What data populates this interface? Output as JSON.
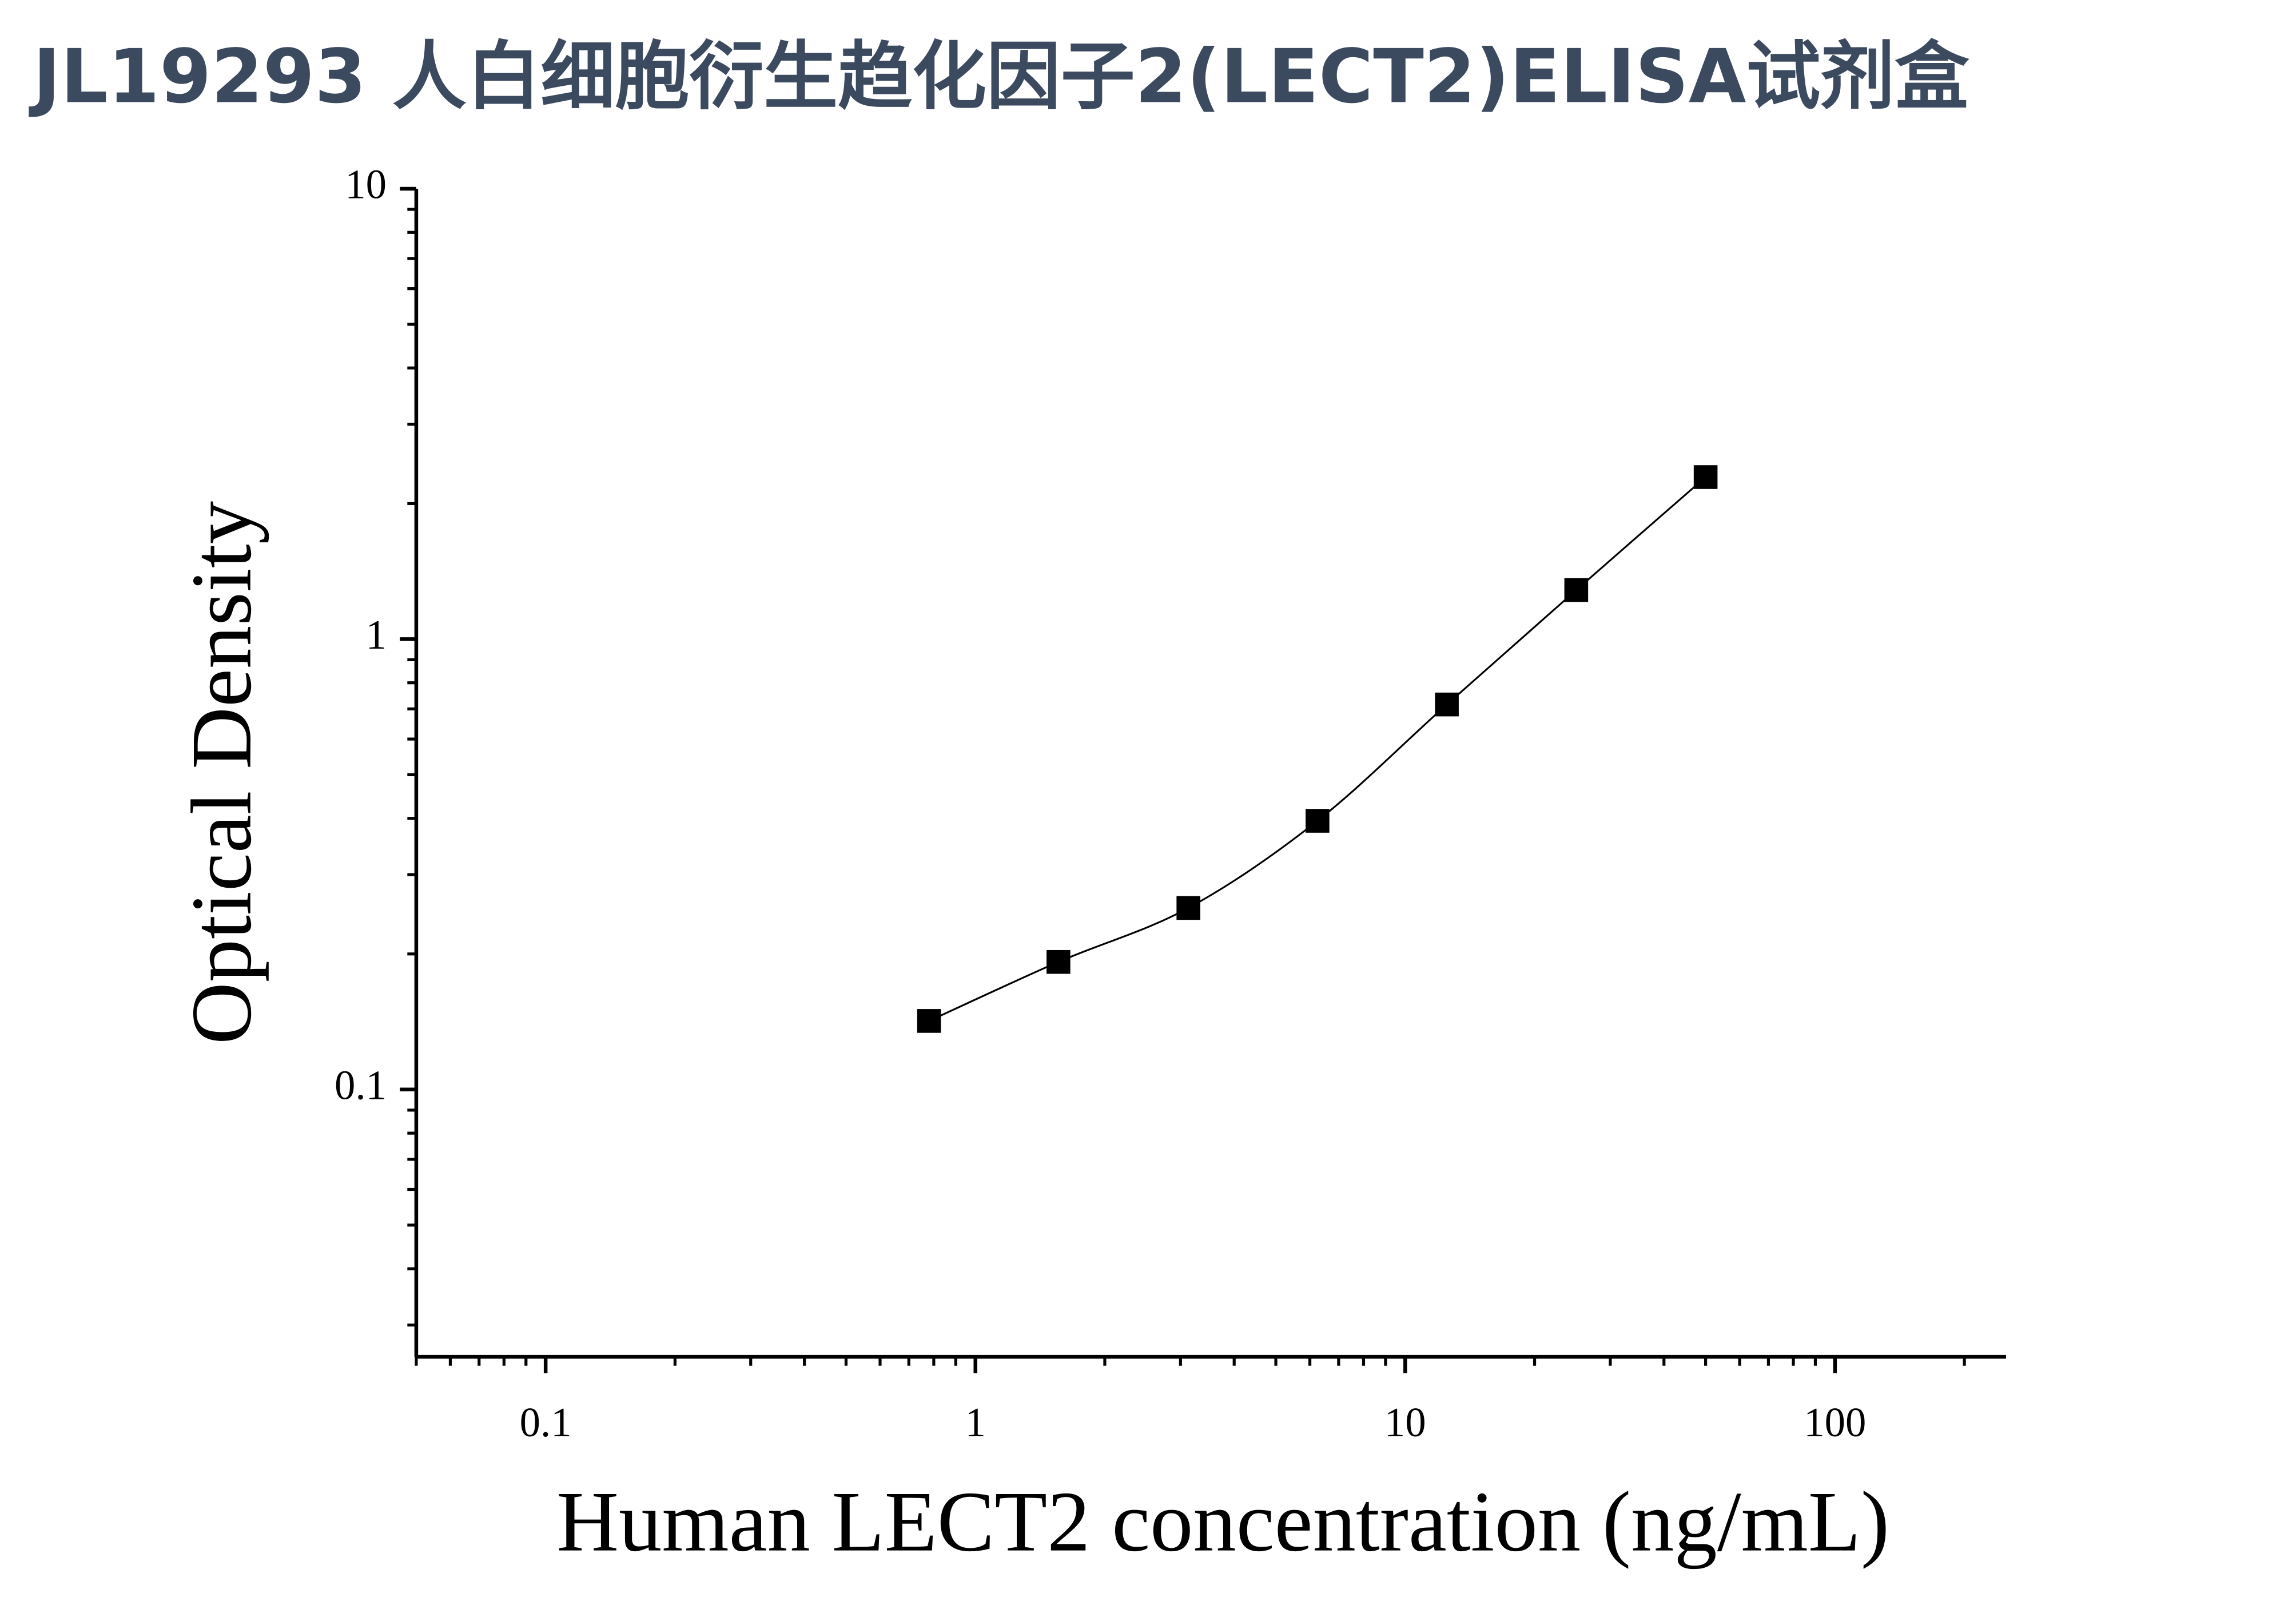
{
  "chart_data": {
    "type": "scatter",
    "title": "JL19293 人白细胞衍生趋化因子2(LECT2)ELISA试剂盒",
    "x_label": "Human LECT2 concentration (ng/mL)",
    "y_label": "Optical Density",
    "x": [
      0.78,
      1.56,
      3.13,
      6.25,
      12.5,
      25,
      50
    ],
    "series": [
      {
        "color": "#000000",
        "values": [
          0.142,
          0.192,
          0.253,
          0.395,
          0.716,
          1.285,
          2.29
        ]
      }
    ],
    "xlim": [
      0.05,
      250
    ],
    "ylim": [
      0.0255,
      10
    ],
    "xticks": [
      0.1,
      1,
      10,
      100
    ],
    "yticks": [
      0.1,
      1,
      10
    ],
    "xscale": "log",
    "yscale": "log",
    "minor_ticks": true,
    "fit_line": true,
    "grid": false
  }
}
